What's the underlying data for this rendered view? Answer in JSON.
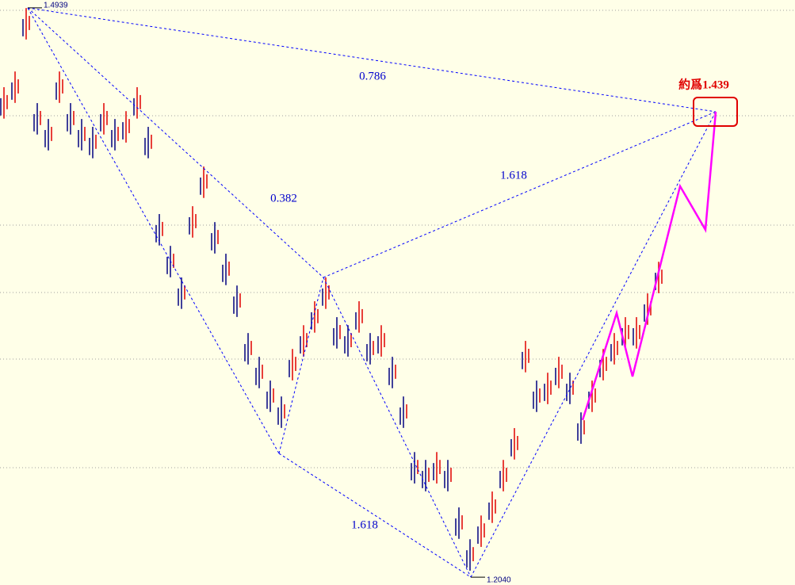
{
  "chart_data": {
    "type": "candlestick",
    "xlim": [
      0,
      1003
    ],
    "ylim": [
      1.2,
      1.4979
    ],
    "candles": {
      "x": [
        5,
        19,
        33,
        47,
        61,
        75,
        89,
        103,
        117,
        131,
        145,
        159,
        173,
        187,
        201,
        215,
        229,
        243,
        257,
        271,
        285,
        299,
        313,
        327,
        341,
        355,
        369,
        383,
        397,
        411,
        425,
        439,
        453,
        467,
        481,
        495,
        509,
        523,
        537,
        551,
        565,
        579,
        593,
        607,
        621,
        635,
        649,
        663,
        677,
        691,
        705,
        719,
        733,
        747,
        761,
        775,
        789,
        803,
        817,
        831
      ],
      "up_color": "#e00000",
      "down_color": "#000080",
      "highs": [
        1.4535,
        1.4615,
        1.4938,
        1.4454,
        1.4373,
        1.4615,
        1.4454,
        1.4373,
        1.4333,
        1.4454,
        1.4373,
        1.4413,
        1.4535,
        1.4333,
        1.3889,
        1.3727,
        1.3566,
        1.3929,
        1.4131,
        1.3848,
        1.3687,
        1.3525,
        1.3283,
        1.3162,
        1.3041,
        1.296,
        1.3202,
        1.3323,
        1.3445,
        1.3566,
        1.3364,
        1.3323,
        1.3445,
        1.3283,
        1.3323,
        1.3162,
        1.296,
        1.2677,
        1.2637,
        1.2677,
        1.2637,
        1.2395,
        1.2233,
        1.2354,
        1.2476,
        1.2637,
        1.2799,
        1.3243,
        1.3041,
        1.3081,
        1.3162,
        1.3081,
        1.2879,
        1.3041,
        1.3202,
        1.3283,
        1.3364,
        1.3364,
        1.3485,
        1.3646
      ],
      "lows": [
        1.4375,
        1.4455,
        1.4778,
        1.4294,
        1.4213,
        1.4455,
        1.4294,
        1.4213,
        1.4173,
        1.4294,
        1.4213,
        1.4253,
        1.4375,
        1.4173,
        1.3729,
        1.3567,
        1.3406,
        1.3769,
        1.3971,
        1.3688,
        1.3527,
        1.3365,
        1.3123,
        1.3002,
        1.2881,
        1.28,
        1.3042,
        1.3163,
        1.3285,
        1.3406,
        1.3204,
        1.3163,
        1.3285,
        1.3123,
        1.3163,
        1.3002,
        1.28,
        1.2517,
        1.2477,
        1.2517,
        1.2477,
        1.2235,
        1.2073,
        1.2194,
        1.2316,
        1.2477,
        1.2639,
        1.3083,
        1.2881,
        1.2921,
        1.3002,
        1.2921,
        1.2719,
        1.2881,
        1.3042,
        1.3123,
        1.3204,
        1.3204,
        1.3325,
        1.3486
      ]
    },
    "pattern": {
      "color": "#0000ff",
      "x": [
        35,
        352,
        408,
        594,
        903
      ],
      "values": [
        1.4939,
        1.267,
        1.3566,
        1.204,
        1.441
      ],
      "value_labels": [
        "1.4939",
        null,
        null,
        "1.2040",
        null
      ]
    },
    "projection": {
      "color": "#ff00ff",
      "x": [
        735,
        778,
        798,
        858,
        890,
        903
      ],
      "values": [
        1.284,
        1.3385,
        1.3062,
        1.4031,
        1.3809,
        1.441
      ]
    },
    "annotations": [
      "0.786",
      "1.618",
      "0.382",
      "1.618"
    ],
    "target_label": "約爲1.439",
    "target_color": "#e00000"
  }
}
